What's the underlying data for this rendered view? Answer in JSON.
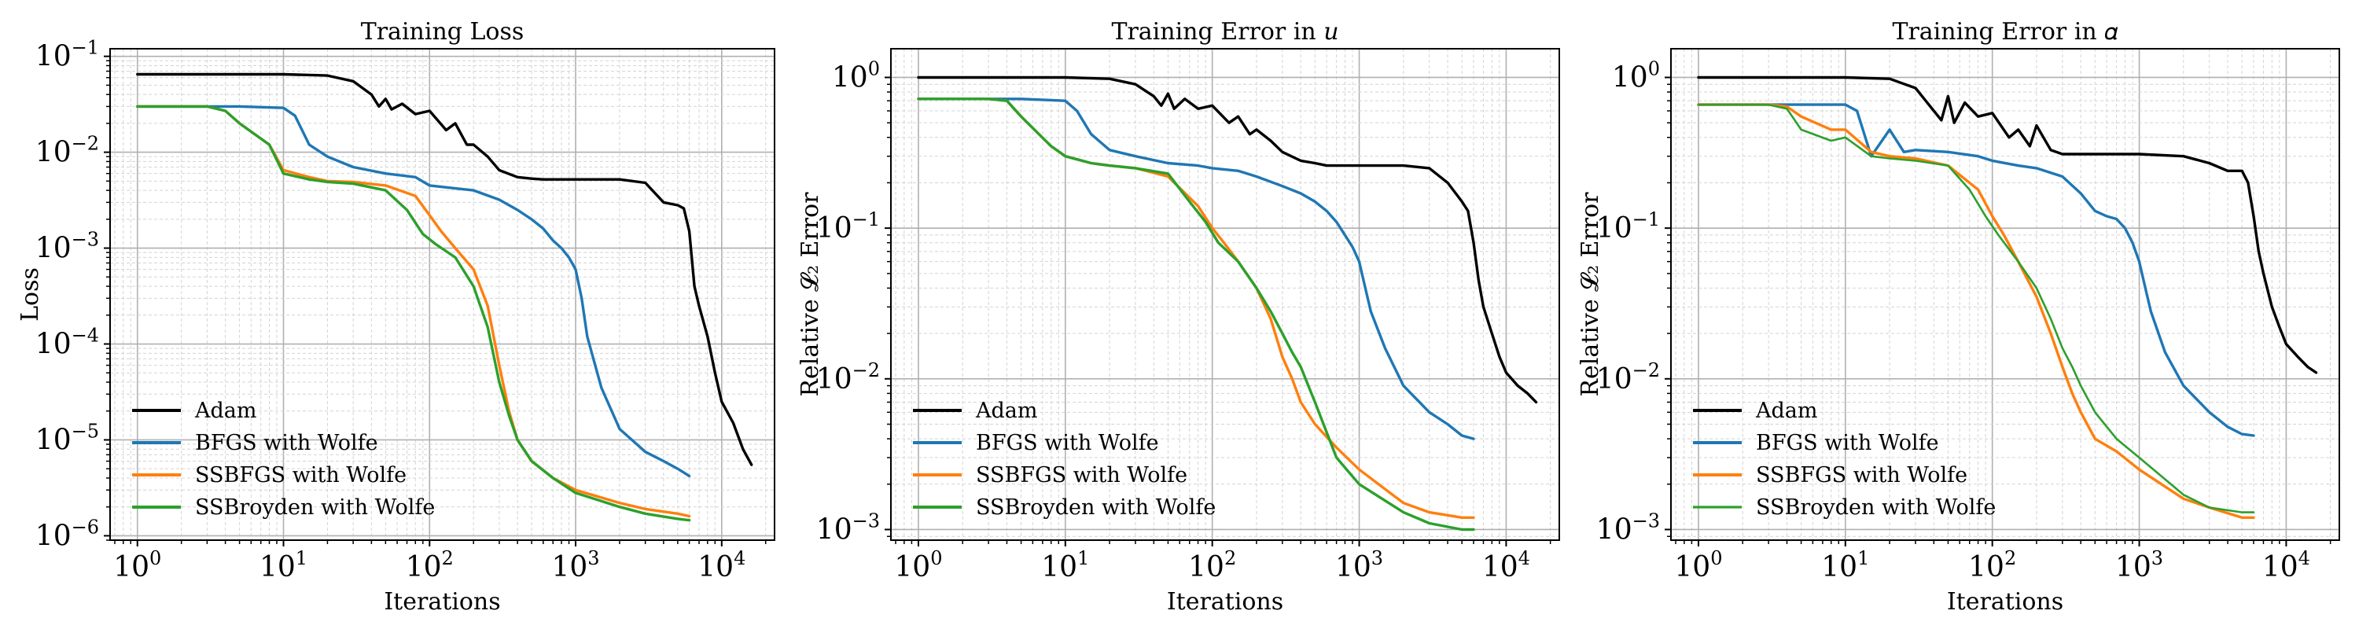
{
  "colors": {
    "Adam": "#000000",
    "BFGS": "#1f77b4",
    "SSBFGS": "#ff7f0e",
    "SSBroyden": "#2ca02c"
  },
  "chart_data": [
    {
      "type": "line",
      "title": "Training Loss",
      "xlabel": "Iterations",
      "ylabel": "Loss",
      "xscale": "log",
      "yscale": "log",
      "xlim": [
        0.65,
        23000
      ],
      "ylim": [
        9e-07,
        0.12
      ],
      "xticks": [
        {
          "v": 1,
          "b": "10",
          "e": "0"
        },
        {
          "v": 10,
          "b": "10",
          "e": "1"
        },
        {
          "v": 100,
          "b": "10",
          "e": "2"
        },
        {
          "v": 1000,
          "b": "10",
          "e": "3"
        },
        {
          "v": 10000,
          "b": "10",
          "e": "4"
        }
      ],
      "yticks": [
        {
          "v": 1e-06,
          "b": "10",
          "e": "−6"
        },
        {
          "v": 1e-05,
          "b": "10",
          "e": "−5"
        },
        {
          "v": 0.0001,
          "b": "10",
          "e": "−4"
        },
        {
          "v": 0.001,
          "b": "10",
          "e": "−3"
        },
        {
          "v": 0.01,
          "b": "10",
          "e": "−2"
        },
        {
          "v": 0.1,
          "b": "10",
          "e": "−1"
        }
      ],
      "legend": {
        "position": "lower-left",
        "entries": [
          "Adam",
          "BFGS with Wolfe",
          "SSBFGS with Wolfe",
          "SSBroyden with Wolfe"
        ]
      },
      "series": [
        {
          "name": "Adam",
          "key": "Adam",
          "width": 3.4,
          "x": [
            1,
            10,
            20,
            30,
            40,
            45,
            50,
            55,
            65,
            80,
            100,
            130,
            150,
            180,
            200,
            250,
            300,
            400,
            500,
            600,
            1000,
            2000,
            3000,
            4000,
            5000,
            5500,
            6000,
            6500,
            7000,
            8000,
            9000,
            10000,
            12000,
            14000,
            16000
          ],
          "y": [
            0.065,
            0.065,
            0.063,
            0.055,
            0.04,
            0.03,
            0.036,
            0.028,
            0.032,
            0.025,
            0.027,
            0.017,
            0.02,
            0.012,
            0.012,
            0.009,
            0.0065,
            0.0055,
            0.0053,
            0.0052,
            0.0052,
            0.0052,
            0.0048,
            0.003,
            0.0028,
            0.0026,
            0.0015,
            0.0004,
            0.00025,
            0.00012,
            5e-05,
            2.5e-05,
            1.5e-05,
            8e-06,
            5.5e-06
          ]
        },
        {
          "name": "BFGS with Wolfe",
          "key": "BFGS",
          "width": 3.4,
          "x": [
            1,
            5,
            10,
            12,
            15,
            20,
            30,
            50,
            80,
            100,
            150,
            200,
            300,
            400,
            500,
            600,
            700,
            800,
            900,
            1000,
            1100,
            1200,
            1500,
            2000,
            3000,
            4000,
            5000,
            6000
          ],
          "y": [
            0.03,
            0.03,
            0.029,
            0.024,
            0.012,
            0.009,
            0.007,
            0.006,
            0.0055,
            0.0045,
            0.0042,
            0.004,
            0.0032,
            0.0025,
            0.002,
            0.0016,
            0.0012,
            0.001,
            0.0008,
            0.0006,
            0.0003,
            0.00012,
            3.5e-05,
            1.3e-05,
            7.5e-06,
            6e-06,
            5e-06,
            4.2e-06
          ]
        },
        {
          "name": "SSBFGS with Wolfe",
          "key": "SSBFGS",
          "width": 3.4,
          "x": [
            1,
            3,
            4,
            5,
            8,
            10,
            15,
            20,
            30,
            50,
            80,
            100,
            120,
            150,
            200,
            250,
            300,
            350,
            400,
            500,
            700,
            1000,
            2000,
            3000,
            5000,
            6000
          ],
          "y": [
            0.03,
            0.03,
            0.027,
            0.02,
            0.012,
            0.0065,
            0.0055,
            0.005,
            0.0049,
            0.0045,
            0.0035,
            0.0022,
            0.0015,
            0.001,
            0.0006,
            0.00025,
            6e-05,
            2e-05,
            1e-05,
            6e-06,
            4e-06,
            3e-06,
            2.2e-06,
            1.9e-06,
            1.7e-06,
            1.6e-06
          ]
        },
        {
          "name": "SSBroyden with Wolfe",
          "key": "SSBroyden",
          "width": 3.4,
          "x": [
            1,
            3,
            4,
            5,
            8,
            10,
            15,
            20,
            30,
            50,
            70,
            90,
            110,
            150,
            200,
            250,
            300,
            350,
            400,
            500,
            700,
            1000,
            2000,
            3000,
            5000,
            6000
          ],
          "y": [
            0.03,
            0.03,
            0.027,
            0.02,
            0.012,
            0.006,
            0.0052,
            0.0049,
            0.0047,
            0.004,
            0.0025,
            0.0014,
            0.0011,
            0.0008,
            0.0004,
            0.00015,
            4e-05,
            1.8e-05,
            1e-05,
            6e-06,
            4e-06,
            2.8e-06,
            2e-06,
            1.7e-06,
            1.5e-06,
            1.45e-06
          ]
        }
      ]
    },
    {
      "type": "line",
      "title": "Training Error in 𝑢",
      "xlabel": "Iterations",
      "ylabel": "Relative 𝓛₂ Error",
      "xscale": "log",
      "yscale": "log",
      "xlim": [
        0.65,
        23000
      ],
      "ylim": [
        0.00085,
        1.55
      ],
      "xticks": [
        {
          "v": 1,
          "b": "10",
          "e": "0"
        },
        {
          "v": 10,
          "b": "10",
          "e": "1"
        },
        {
          "v": 100,
          "b": "10",
          "e": "2"
        },
        {
          "v": 1000,
          "b": "10",
          "e": "3"
        },
        {
          "v": 10000,
          "b": "10",
          "e": "4"
        }
      ],
      "yticks": [
        {
          "v": 0.001,
          "b": "10",
          "e": "−3"
        },
        {
          "v": 0.01,
          "b": "10",
          "e": "−2"
        },
        {
          "v": 0.1,
          "b": "10",
          "e": "−1"
        },
        {
          "v": 1,
          "b": "10",
          "e": "0"
        }
      ],
      "legend": {
        "position": "lower-left",
        "entries": [
          "Adam",
          "BFGS with Wolfe",
          "SSBFGS with Wolfe",
          "SSBroyden with Wolfe"
        ]
      },
      "series": [
        {
          "name": "Adam",
          "key": "Adam",
          "width": 3.4,
          "x": [
            1,
            10,
            20,
            30,
            40,
            45,
            50,
            55,
            65,
            80,
            100,
            130,
            150,
            180,
            200,
            250,
            300,
            400,
            500,
            600,
            1000,
            2000,
            3000,
            4000,
            5000,
            5500,
            6000,
            6500,
            7000,
            8000,
            9000,
            10000,
            12000,
            14000,
            16000
          ],
          "y": [
            1.0,
            1.0,
            0.98,
            0.9,
            0.75,
            0.65,
            0.78,
            0.62,
            0.72,
            0.62,
            0.65,
            0.5,
            0.55,
            0.42,
            0.45,
            0.38,
            0.32,
            0.28,
            0.27,
            0.26,
            0.26,
            0.26,
            0.25,
            0.2,
            0.15,
            0.13,
            0.08,
            0.045,
            0.03,
            0.02,
            0.014,
            0.011,
            0.009,
            0.008,
            0.007
          ]
        },
        {
          "name": "BFGS with Wolfe",
          "key": "BFGS",
          "width": 3.4,
          "x": [
            1,
            5,
            10,
            12,
            15,
            20,
            30,
            50,
            80,
            100,
            150,
            200,
            300,
            400,
            500,
            600,
            700,
            800,
            900,
            1000,
            1100,
            1200,
            1500,
            2000,
            3000,
            4000,
            5000,
            6000
          ],
          "y": [
            0.72,
            0.72,
            0.7,
            0.6,
            0.42,
            0.33,
            0.3,
            0.27,
            0.26,
            0.25,
            0.24,
            0.22,
            0.19,
            0.17,
            0.15,
            0.13,
            0.11,
            0.09,
            0.075,
            0.06,
            0.04,
            0.028,
            0.016,
            0.009,
            0.006,
            0.005,
            0.0042,
            0.004
          ]
        },
        {
          "name": "SSBFGS with Wolfe",
          "key": "SSBFGS",
          "width": 3.4,
          "x": [
            1,
            3,
            4,
            5,
            8,
            10,
            15,
            20,
            30,
            50,
            80,
            100,
            120,
            150,
            200,
            250,
            300,
            350,
            400,
            500,
            700,
            1000,
            2000,
            3000,
            5000,
            6000
          ],
          "y": [
            0.72,
            0.72,
            0.7,
            0.55,
            0.35,
            0.3,
            0.27,
            0.26,
            0.25,
            0.22,
            0.14,
            0.1,
            0.08,
            0.06,
            0.04,
            0.025,
            0.014,
            0.01,
            0.007,
            0.005,
            0.0035,
            0.0025,
            0.0015,
            0.0013,
            0.0012,
            0.0012
          ]
        },
        {
          "name": "SSBroyden with Wolfe",
          "key": "SSBroyden",
          "width": 3.4,
          "x": [
            1,
            3,
            4,
            5,
            8,
            10,
            15,
            20,
            30,
            50,
            70,
            90,
            110,
            150,
            200,
            250,
            300,
            350,
            400,
            500,
            700,
            1000,
            2000,
            3000,
            5000,
            6000
          ],
          "y": [
            0.72,
            0.72,
            0.7,
            0.55,
            0.35,
            0.3,
            0.27,
            0.26,
            0.25,
            0.23,
            0.15,
            0.11,
            0.08,
            0.06,
            0.04,
            0.028,
            0.02,
            0.015,
            0.012,
            0.007,
            0.003,
            0.002,
            0.0013,
            0.0011,
            0.001,
            0.001
          ]
        }
      ]
    },
    {
      "type": "line",
      "title": "Training Error in 𝛼",
      "xlabel": "Iterations",
      "ylabel": "Relative 𝓛₂ Error",
      "xscale": "log",
      "yscale": "log",
      "xlim": [
        0.65,
        23000
      ],
      "ylim": [
        0.00085,
        1.55
      ],
      "xticks": [
        {
          "v": 1,
          "b": "10",
          "e": "0"
        },
        {
          "v": 10,
          "b": "10",
          "e": "1"
        },
        {
          "v": 100,
          "b": "10",
          "e": "2"
        },
        {
          "v": 1000,
          "b": "10",
          "e": "3"
        },
        {
          "v": 10000,
          "b": "10",
          "e": "4"
        }
      ],
      "yticks": [
        {
          "v": 0.001,
          "b": "10",
          "e": "−3"
        },
        {
          "v": 0.01,
          "b": "10",
          "e": "−2"
        },
        {
          "v": 0.1,
          "b": "10",
          "e": "−1"
        },
        {
          "v": 1,
          "b": "10",
          "e": "0"
        }
      ],
      "legend": {
        "position": "lower-left",
        "entries": [
          "Adam",
          "BFGS with Wolfe",
          "SSBFGS with Wolfe",
          "SSBroyden with Wolfe"
        ]
      },
      "series": [
        {
          "name": "Adam",
          "key": "Adam",
          "width": 3.4,
          "x": [
            1,
            10,
            20,
            30,
            40,
            45,
            50,
            55,
            65,
            80,
            100,
            130,
            150,
            180,
            200,
            250,
            300,
            400,
            500,
            600,
            1000,
            2000,
            3000,
            4000,
            5000,
            5500,
            6000,
            6500,
            7000,
            8000,
            9000,
            10000,
            12000,
            14000,
            16000
          ],
          "y": [
            1.0,
            1.0,
            0.98,
            0.85,
            0.6,
            0.52,
            0.75,
            0.5,
            0.68,
            0.55,
            0.58,
            0.4,
            0.45,
            0.35,
            0.48,
            0.33,
            0.31,
            0.31,
            0.31,
            0.31,
            0.31,
            0.3,
            0.27,
            0.24,
            0.24,
            0.2,
            0.12,
            0.07,
            0.05,
            0.03,
            0.022,
            0.017,
            0.014,
            0.012,
            0.011
          ]
        },
        {
          "name": "BFGS with Wolfe",
          "key": "BFGS",
          "width": 3.4,
          "x": [
            1,
            5,
            10,
            12,
            15,
            20,
            25,
            30,
            50,
            80,
            100,
            150,
            200,
            300,
            400,
            500,
            600,
            700,
            800,
            900,
            1000,
            1100,
            1200,
            1500,
            2000,
            3000,
            4000,
            5000,
            6000
          ],
          "y": [
            0.66,
            0.66,
            0.66,
            0.6,
            0.3,
            0.45,
            0.32,
            0.33,
            0.32,
            0.3,
            0.28,
            0.26,
            0.25,
            0.22,
            0.17,
            0.13,
            0.12,
            0.115,
            0.1,
            0.08,
            0.06,
            0.04,
            0.028,
            0.015,
            0.009,
            0.006,
            0.0048,
            0.0043,
            0.0042
          ]
        },
        {
          "name": "SSBFGS with Wolfe",
          "key": "SSBFGS",
          "width": 3.4,
          "x": [
            1,
            3,
            4,
            5,
            8,
            10,
            15,
            20,
            30,
            50,
            80,
            100,
            120,
            150,
            200,
            250,
            300,
            350,
            400,
            500,
            700,
            1000,
            2000,
            3000,
            5000,
            6000
          ],
          "y": [
            0.66,
            0.66,
            0.64,
            0.55,
            0.45,
            0.45,
            0.32,
            0.3,
            0.29,
            0.26,
            0.18,
            0.12,
            0.09,
            0.06,
            0.035,
            0.02,
            0.012,
            0.008,
            0.006,
            0.004,
            0.0033,
            0.0025,
            0.0016,
            0.0014,
            0.0012,
            0.0012
          ]
        },
        {
          "name": "SSBroyden with Wolfe",
          "key": "SSBroyden",
          "width": 2.6,
          "x": [
            1,
            3,
            4,
            5,
            8,
            10,
            15,
            20,
            30,
            50,
            70,
            90,
            110,
            150,
            200,
            250,
            300,
            350,
            400,
            500,
            700,
            1000,
            2000,
            3000,
            5000,
            6000
          ],
          "y": [
            0.66,
            0.66,
            0.62,
            0.45,
            0.38,
            0.4,
            0.3,
            0.29,
            0.28,
            0.26,
            0.18,
            0.12,
            0.09,
            0.06,
            0.04,
            0.025,
            0.016,
            0.012,
            0.009,
            0.006,
            0.004,
            0.003,
            0.0017,
            0.0014,
            0.0013,
            0.0013
          ]
        }
      ]
    }
  ]
}
